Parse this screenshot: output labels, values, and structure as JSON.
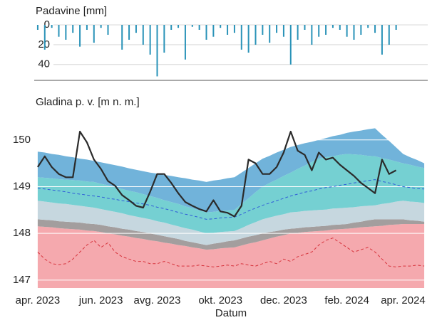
{
  "chart_data": [
    {
      "type": "bar",
      "title": "Padavine [mm]",
      "inverted": true,
      "color": "#2a93b8",
      "ylim": [
        0,
        56
      ],
      "yticks": [
        0,
        20,
        40
      ],
      "grid": true,
      "values": [
        5,
        25,
        3,
        12,
        15,
        8,
        22,
        5,
        18,
        3,
        10,
        0,
        25,
        15,
        8,
        20,
        30,
        52,
        28,
        5,
        3,
        35,
        2,
        5,
        15,
        12,
        3,
        10,
        8,
        25,
        28,
        20,
        10,
        18,
        8,
        12,
        40,
        15,
        5,
        20,
        12,
        10,
        3,
        5,
        12,
        15,
        10,
        3,
        8,
        30,
        20,
        5,
        null,
        null,
        null,
        null
      ]
    },
    {
      "type": "line",
      "title": "Gladina p. v. [m n. m.]",
      "xlabel": "Datum",
      "grid": true,
      "categories": [
        "apr. 2023",
        null,
        null,
        null,
        null,
        null,
        null,
        null,
        null,
        "jun. 2023",
        null,
        null,
        null,
        null,
        null,
        null,
        null,
        "avg. 2023",
        null,
        null,
        null,
        null,
        null,
        null,
        null,
        null,
        "okt. 2023",
        null,
        null,
        null,
        null,
        null,
        null,
        null,
        null,
        "dec. 2023",
        null,
        null,
        null,
        null,
        null,
        null,
        null,
        null,
        "feb. 2024",
        null,
        null,
        null,
        null,
        null,
        null,
        null,
        "apr. 2024",
        null,
        null,
        null
      ],
      "ylim": [
        146.83,
        150.56
      ],
      "yticks": [
        147,
        148,
        149,
        150
      ],
      "bands": [
        {
          "color": "#f5a9ae",
          "values": [
            148.15,
            148.14,
            148.13,
            148.11,
            148.1,
            148.09,
            148.08,
            148.06,
            148.05,
            148.03,
            148.0,
            147.98,
            147.95,
            147.93,
            147.9,
            147.88,
            147.85,
            147.83,
            147.8,
            147.78,
            147.75,
            147.73,
            147.7,
            147.68,
            147.65,
            147.66,
            147.68,
            147.69,
            147.7,
            147.74,
            147.78,
            147.81,
            147.85,
            147.89,
            147.93,
            147.96,
            148.0,
            148.01,
            148.03,
            148.04,
            148.05,
            148.06,
            148.08,
            148.09,
            148.1,
            148.11,
            148.13,
            148.14,
            148.15,
            148.16,
            148.18,
            148.19,
            148.2,
            148.2,
            148.2,
            148.2
          ]
        },
        {
          "color": "#a39e9e",
          "values": [
            148.3,
            148.29,
            148.28,
            148.26,
            148.25,
            148.24,
            148.23,
            148.21,
            148.2,
            148.18,
            148.15,
            148.13,
            148.1,
            148.08,
            148.05,
            148.03,
            148.0,
            147.97,
            147.94,
            147.91,
            147.88,
            147.84,
            147.81,
            147.78,
            147.75,
            147.78,
            147.8,
            147.83,
            147.85,
            147.89,
            147.93,
            147.96,
            148.0,
            148.03,
            148.05,
            148.08,
            148.1,
            148.11,
            148.13,
            148.14,
            148.15,
            148.16,
            148.18,
            148.19,
            148.2,
            148.23,
            148.25,
            148.28,
            148.3,
            148.3,
            148.3,
            148.3,
            148.3,
            148.28,
            148.27,
            148.25
          ]
        },
        {
          "color": "#c6d7df",
          "values": [
            148.7,
            148.68,
            148.66,
            148.64,
            148.63,
            148.61,
            148.59,
            148.57,
            148.55,
            148.52,
            148.49,
            148.46,
            148.43,
            148.39,
            148.36,
            148.33,
            148.3,
            148.26,
            148.23,
            148.19,
            148.15,
            148.11,
            148.08,
            148.04,
            148.0,
            148.01,
            148.03,
            148.04,
            148.05,
            148.11,
            148.18,
            148.24,
            148.3,
            148.34,
            148.38,
            148.41,
            148.45,
            148.46,
            148.48,
            148.49,
            148.5,
            148.51,
            148.53,
            148.54,
            148.55,
            148.56,
            148.58,
            148.59,
            148.6,
            148.63,
            148.65,
            148.68,
            148.7,
            148.68,
            148.67,
            148.65
          ]
        },
        {
          "color": "#75d0d2",
          "values": [
            149.2,
            149.19,
            149.18,
            149.16,
            149.15,
            149.14,
            149.13,
            149.11,
            149.1,
            149.06,
            149.03,
            148.99,
            148.95,
            148.91,
            148.88,
            148.84,
            148.8,
            148.76,
            148.71,
            148.67,
            148.63,
            148.58,
            148.54,
            148.49,
            148.45,
            148.46,
            148.48,
            148.49,
            148.5,
            148.63,
            148.75,
            148.88,
            149.0,
            149.08,
            149.15,
            149.23,
            149.3,
            149.38,
            149.45,
            149.53,
            149.6,
            149.63,
            149.65,
            149.68,
            149.7,
            149.69,
            149.68,
            149.66,
            149.65,
            149.61,
            149.58,
            149.54,
            149.5,
            149.47,
            149.43,
            149.4
          ]
        },
        {
          "color": "#71b3da",
          "values": [
            149.75,
            149.73,
            149.7,
            149.68,
            149.65,
            149.63,
            149.6,
            149.58,
            149.55,
            149.52,
            149.49,
            149.46,
            149.43,
            149.39,
            149.36,
            149.33,
            149.3,
            149.28,
            149.25,
            149.23,
            149.2,
            149.18,
            149.15,
            149.13,
            149.1,
            149.13,
            149.15,
            149.18,
            149.2,
            149.3,
            149.4,
            149.5,
            149.6,
            149.66,
            149.73,
            149.79,
            149.85,
            149.89,
            149.93,
            149.96,
            150.0,
            150.04,
            150.08,
            150.11,
            150.15,
            150.18,
            150.2,
            150.23,
            150.25,
            150.11,
            149.98,
            149.84,
            149.7,
            149.63,
            149.57,
            149.5
          ]
        }
      ],
      "series": [
        {
          "color": "#d6333c",
          "dashed": true,
          "values": [
            147.6,
            147.45,
            147.35,
            147.33,
            147.35,
            147.45,
            147.6,
            147.75,
            147.85,
            147.7,
            147.8,
            147.6,
            147.5,
            147.45,
            147.4,
            147.4,
            147.35,
            147.35,
            147.4,
            147.35,
            147.3,
            147.3,
            147.3,
            147.32,
            147.3,
            147.28,
            147.3,
            147.32,
            147.3,
            147.35,
            147.32,
            147.3,
            147.35,
            147.4,
            147.35,
            147.45,
            147.4,
            147.5,
            147.55,
            147.6,
            147.75,
            147.85,
            147.9,
            147.8,
            147.7,
            147.6,
            147.65,
            147.7,
            147.6,
            147.45,
            147.3,
            147.28,
            147.3,
            147.3,
            147.32,
            147.3
          ]
        },
        {
          "color": "#2f5cd8",
          "dashed": true,
          "values": [
            148.97,
            148.95,
            148.93,
            148.91,
            148.89,
            148.86,
            148.84,
            148.82,
            148.8,
            148.78,
            148.75,
            148.73,
            148.7,
            148.68,
            148.65,
            148.63,
            148.6,
            148.56,
            148.53,
            148.49,
            148.45,
            148.41,
            148.38,
            148.34,
            148.3,
            148.31,
            148.33,
            148.34,
            148.35,
            148.41,
            148.48,
            148.54,
            148.6,
            148.65,
            148.7,
            148.75,
            148.8,
            148.84,
            148.88,
            148.91,
            148.95,
            148.98,
            149.0,
            149.03,
            149.05,
            149.08,
            149.1,
            149.13,
            149.15,
            149.11,
            149.08,
            149.04,
            149.0,
            148.98,
            148.96,
            148.95
          ]
        },
        {
          "color": "#2b2b2b",
          "dashed": false,
          "values": [
            149.42,
            149.65,
            149.42,
            149.27,
            149.2,
            149.2,
            150.18,
            149.95,
            149.58,
            149.38,
            149.12,
            149.02,
            148.82,
            148.71,
            148.59,
            148.55,
            148.89,
            149.27,
            149.27,
            149.08,
            148.86,
            148.67,
            148.59,
            148.52,
            148.47,
            148.71,
            148.47,
            148.44,
            148.36,
            148.59,
            149.58,
            149.5,
            149.27,
            149.27,
            149.42,
            149.73,
            150.18,
            149.77,
            149.68,
            149.35,
            149.73,
            149.58,
            149.62,
            149.47,
            149.35,
            149.23,
            149.08,
            148.97,
            148.86,
            149.58,
            149.27,
            149.35,
            null,
            null,
            null,
            null
          ]
        }
      ]
    }
  ]
}
